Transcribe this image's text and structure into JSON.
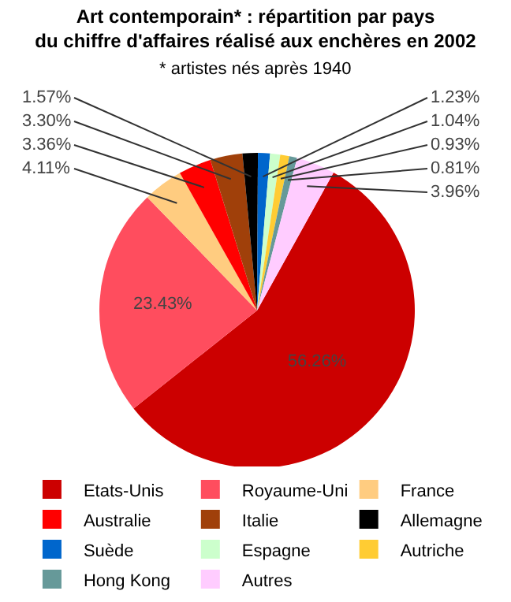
{
  "chart_data": {
    "type": "pie",
    "title": "Art contemporain* : répartition par pays\ndu chiffre d'affaires réalisé aux enchères en 2002",
    "subtitle": "* artistes nés après 1940",
    "categories": [
      "Etats-Unis",
      "Royaume-Uni",
      "France",
      "Australie",
      "Italie",
      "Allemagne",
      "Suède",
      "Espagne",
      "Autriche",
      "Hong Kong",
      "Autres"
    ],
    "values": [
      56.26,
      23.43,
      4.11,
      3.36,
      3.3,
      1.57,
      1.23,
      1.04,
      0.93,
      0.81,
      3.96
    ],
    "value_labels": [
      "56.26%",
      "23.43%",
      "4.11%",
      "3.36%",
      "3.30%",
      "1.57%",
      "1.23%",
      "1.04%",
      "0.93%",
      "0.81%",
      "3.96%"
    ],
    "colors": [
      "#cc0000",
      "#ff4d5e",
      "#ffcc80",
      "#ff0000",
      "#a0400a",
      "#000000",
      "#0066cc",
      "#ccffcc",
      "#ffcc33",
      "#669999",
      "#ffccff"
    ],
    "legend": "bottom"
  }
}
